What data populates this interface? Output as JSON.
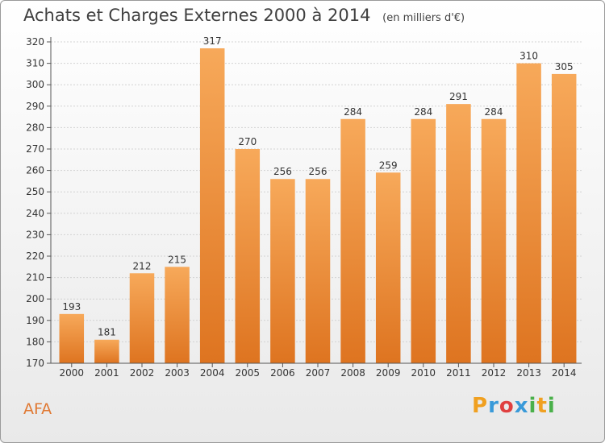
{
  "title": "Achats et Charges Externes 2000 à 2014",
  "subtitle": "(en milliers d'€)",
  "place_label": "AFA",
  "logo": {
    "letters": [
      "P",
      "r",
      "o",
      "x",
      "i",
      "t",
      "i"
    ],
    "colors": [
      "#f0a020",
      "#3a9ad9",
      "#e04040",
      "#3a9ad9",
      "#4ab04a",
      "#f0a020",
      "#4ab04a"
    ]
  },
  "colors": {
    "bar_light": "#f7a95a",
    "bar_dark": "#de7420",
    "place_text": "#e07832"
  },
  "chart_data": {
    "type": "bar",
    "title": "Achats et Charges Externes 2000 à 2014",
    "subtitle": "(en milliers d'€)",
    "categories": [
      "2000",
      "2001",
      "2002",
      "2003",
      "2004",
      "2005",
      "2006",
      "2007",
      "2008",
      "2009",
      "2010",
      "2011",
      "2012",
      "2013",
      "2014"
    ],
    "values": [
      193,
      181,
      212,
      215,
      317,
      270,
      256,
      256,
      284,
      259,
      284,
      291,
      284,
      310,
      305
    ],
    "ylim": [
      170,
      320
    ],
    "yticks": [
      170,
      180,
      190,
      200,
      210,
      220,
      230,
      240,
      250,
      260,
      270,
      280,
      290,
      300,
      310,
      320
    ],
    "grid": true,
    "xlabel": "",
    "ylabel": ""
  }
}
